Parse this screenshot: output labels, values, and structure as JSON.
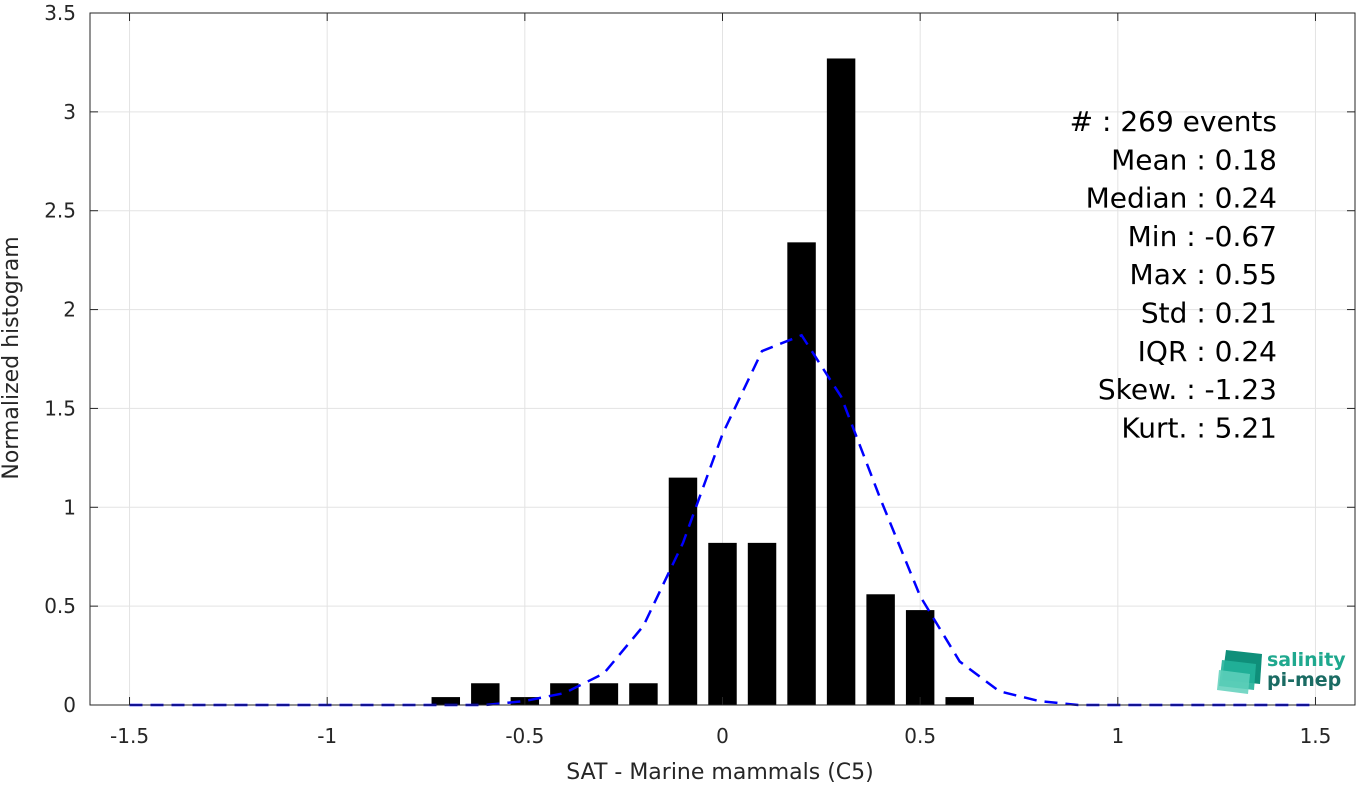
{
  "chart_data": {
    "type": "bar",
    "xlabel": "SAT - Marine mammals (C5)",
    "ylabel": "Normalized histogram",
    "xlim": [
      -1.6,
      1.6
    ],
    "ylim": [
      0,
      3.5
    ],
    "xticks": [
      "-1.5",
      "-1",
      "-0.5",
      "0",
      "0.5",
      "1",
      "1.5"
    ],
    "yticks": [
      "0",
      "0.5",
      "1",
      "1.5",
      "2",
      "2.5",
      "3",
      "3.5"
    ],
    "grid": true,
    "bar_color": "#000000",
    "fit_color": "#0000ff",
    "bins": [
      {
        "x": -0.7,
        "y": 0.04
      },
      {
        "x": -0.6,
        "y": 0.11
      },
      {
        "x": -0.5,
        "y": 0.04
      },
      {
        "x": -0.4,
        "y": 0.11
      },
      {
        "x": -0.3,
        "y": 0.11
      },
      {
        "x": -0.2,
        "y": 0.11
      },
      {
        "x": -0.1,
        "y": 1.15
      },
      {
        "x": 0.0,
        "y": 0.82
      },
      {
        "x": 0.1,
        "y": 0.82
      },
      {
        "x": 0.2,
        "y": 2.34
      },
      {
        "x": 0.3,
        "y": 3.27
      },
      {
        "x": 0.4,
        "y": 0.56
      },
      {
        "x": 0.5,
        "y": 0.48
      },
      {
        "x": 0.6,
        "y": 0.04
      }
    ],
    "fit_curve": {
      "x": [
        -1.5,
        -1.4,
        -1.3,
        -1.2,
        -1.1,
        -1.0,
        -0.9,
        -0.8,
        -0.7,
        -0.6,
        -0.5,
        -0.4,
        -0.3,
        -0.2,
        -0.1,
        0.0,
        0.1,
        0.2,
        0.3,
        0.4,
        0.5,
        0.6,
        0.7,
        0.8,
        0.9,
        1.0,
        1.1,
        1.2,
        1.3,
        1.4,
        1.5
      ],
      "y": [
        0,
        0,
        0,
        0,
        0,
        0,
        0,
        0,
        0,
        0,
        0.02,
        0.06,
        0.16,
        0.4,
        0.82,
        1.37,
        1.79,
        1.87,
        1.56,
        1.04,
        0.55,
        0.22,
        0.07,
        0.02,
        0,
        0,
        0,
        0,
        0,
        0,
        0
      ]
    },
    "stats": [
      "#  : 269 events",
      "Mean : 0.18",
      "Median : 0.24",
      "Min : -0.67",
      "Max : 0.55",
      "Std : 0.21",
      "IQR : 0.24",
      "Skew. : -1.23",
      "Kurt. : 5.21"
    ]
  },
  "logo": {
    "line1": "salinity",
    "line2": "pi-mep",
    "color1": "#1fa88e",
    "color2": "#1a6b63"
  }
}
